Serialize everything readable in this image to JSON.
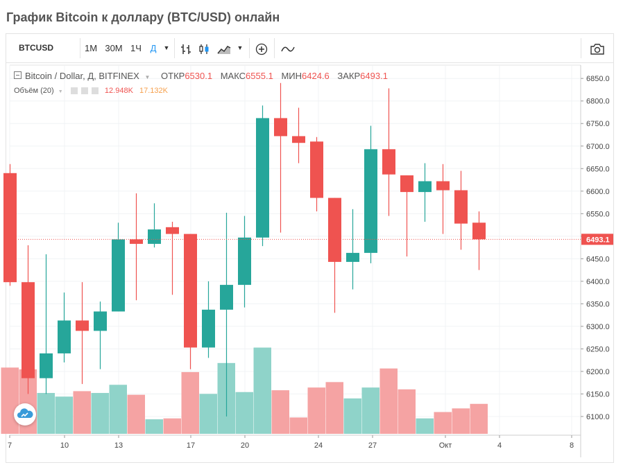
{
  "page": {
    "title": "График Bitcoin к доллару (BTC/USD) онлайн"
  },
  "toolbar": {
    "symbol": "BTCUSD",
    "intervals": [
      "1M",
      "30M",
      "1Ч",
      "Д"
    ],
    "active_interval": "Д"
  },
  "legend": {
    "symbol_name": "Bitcoin / Dollar, Д, BITFINEX",
    "open_label": "ОТКР",
    "open_value": "6530.1",
    "high_label": "МАКС",
    "high_value": "6555.1",
    "low_label": "МИН",
    "low_value": "6424.6",
    "close_label": "ЗАКР",
    "close_value": "6493.1"
  },
  "volume_legend": {
    "label": "Объём (20)",
    "value1": "12.948K",
    "value2": "17.132K"
  },
  "colors": {
    "up": "#26a69a",
    "down": "#ef5350",
    "vol_up": "#8fd3c9",
    "vol_down": "#f5a3a3",
    "value2": "#f6a04d",
    "grid": "#f0f3f5"
  },
  "chart_data": {
    "type": "candlestick",
    "price_axis": {
      "min": 6060,
      "max": 6880,
      "ticks": [
        6100,
        6150,
        6200,
        6250,
        6300,
        6350,
        6400,
        6450,
        6500,
        6550,
        6600,
        6650,
        6700,
        6750,
        6800,
        6850
      ]
    },
    "last_price_label": "6493.1",
    "x_tick_labels": [
      "7",
      "10",
      "13",
      "17",
      "20",
      "24",
      "27",
      "Окт",
      "4",
      "8"
    ],
    "candles": [
      {
        "o": 6640,
        "h": 6660,
        "l": 6390,
        "c": 6398
      },
      {
        "o": 6398,
        "h": 6480,
        "l": 6150,
        "c": 6185
      },
      {
        "o": 6185,
        "h": 6460,
        "l": 6150,
        "c": 6240
      },
      {
        "o": 6240,
        "h": 6375,
        "l": 6220,
        "c": 6313
      },
      {
        "o": 6313,
        "h": 6398,
        "l": 6172,
        "c": 6290
      },
      {
        "o": 6290,
        "h": 6355,
        "l": 6205,
        "c": 6333
      },
      {
        "o": 6333,
        "h": 6530,
        "l": 6333,
        "c": 6493
      },
      {
        "o": 6493,
        "h": 6595,
        "l": 6358,
        "c": 6483
      },
      {
        "o": 6483,
        "h": 6573,
        "l": 6475,
        "c": 6515
      },
      {
        "o": 6520,
        "h": 6532,
        "l": 6370,
        "c": 6505
      },
      {
        "o": 6505,
        "h": 6505,
        "l": 6205,
        "c": 6253
      },
      {
        "o": 6253,
        "h": 6400,
        "l": 6230,
        "c": 6337
      },
      {
        "o": 6337,
        "h": 6552,
        "l": 6100,
        "c": 6392
      },
      {
        "o": 6392,
        "h": 6545,
        "l": 6342,
        "c": 6497
      },
      {
        "o": 6497,
        "h": 6790,
        "l": 6478,
        "c": 6762
      },
      {
        "o": 6762,
        "h": 6840,
        "l": 6508,
        "c": 6722
      },
      {
        "o": 6722,
        "h": 6785,
        "l": 6662,
        "c": 6707
      },
      {
        "o": 6710,
        "h": 6720,
        "l": 6555,
        "c": 6585
      },
      {
        "o": 6585,
        "h": 6585,
        "l": 6330,
        "c": 6443
      },
      {
        "o": 6443,
        "h": 6560,
        "l": 6382,
        "c": 6463
      },
      {
        "o": 6463,
        "h": 6745,
        "l": 6440,
        "c": 6693
      },
      {
        "o": 6693,
        "h": 6828,
        "l": 6545,
        "c": 6637
      },
      {
        "o": 6635,
        "h": 6635,
        "l": 6455,
        "c": 6598
      },
      {
        "o": 6598,
        "h": 6662,
        "l": 6532,
        "c": 6622
      },
      {
        "o": 6622,
        "h": 6660,
        "l": 6505,
        "c": 6602
      },
      {
        "o": 6602,
        "h": 6645,
        "l": 6470,
        "c": 6528
      },
      {
        "o": 6530,
        "h": 6555,
        "l": 6425,
        "c": 6493
      }
    ],
    "volumes": [
      0.73,
      0.71,
      0.45,
      0.41,
      0.47,
      0.45,
      0.54,
      0.43,
      0.16,
      0.17,
      0.68,
      0.44,
      0.78,
      0.46,
      0.95,
      0.48,
      0.18,
      0.51,
      0.57,
      0.39,
      0.51,
      0.72,
      0.49,
      0.17,
      0.24,
      0.28,
      0.33
    ]
  }
}
